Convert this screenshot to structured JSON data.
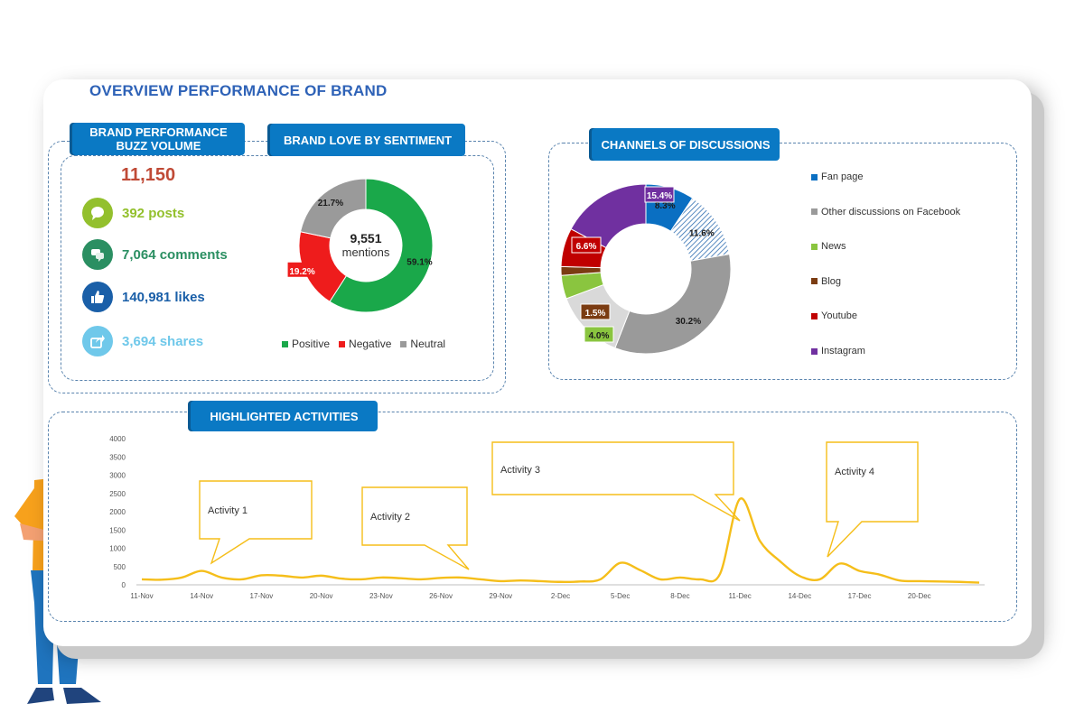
{
  "page": {
    "title": "OVERVIEW PERFORMANCE OF BRAND"
  },
  "colors": {
    "accent_blue": "#0a79c4",
    "positive": "#1aa84a",
    "negative": "#ee1c1c",
    "neutral": "#9a9a9a",
    "line": "#f5be1a"
  },
  "buzz": {
    "label": "BRAND PERFORMANCE BUZZ VOLUME",
    "total": "11,150",
    "metrics": [
      {
        "text": "392 posts",
        "icon": "speech-bubble-icon",
        "color": "#93c02d"
      },
      {
        "text": "7,064 comments",
        "icon": "comments-icon",
        "color": "#2b8f62"
      },
      {
        "text": "140,981 likes",
        "icon": "thumbs-up-icon",
        "color": "#1a5fa8"
      },
      {
        "text": "3,694 shares",
        "icon": "share-icon",
        "color": "#6fc8ea"
      }
    ]
  },
  "sentiment": {
    "label": "BRAND LOVE BY SENTIMENT",
    "center_value": "9,551",
    "center_label": "mentions"
  },
  "channels": {
    "label": "CHANNELS OF DISCUSSIONS"
  },
  "activities": {
    "label": "HIGHLIGHTED ACTIVITIES",
    "callouts": [
      "Activity 1",
      "Activity 2",
      "Activity 3",
      "Activity 4"
    ]
  },
  "chart_data": [
    {
      "type": "pie",
      "variant": "donut",
      "labels": [
        "Positive",
        "Negative",
        "Neutral"
      ],
      "values": [
        59.1,
        19.2,
        21.7
      ],
      "value_labels": [
        "59.1%",
        "19.2%",
        "21.7%"
      ],
      "colors": [
        "#1aa84a",
        "#ee1c1c",
        "#9a9a9a"
      ],
      "legend": "bottom"
    },
    {
      "type": "pie",
      "variant": "donut",
      "labels": [
        "Fan page",
        "Other discussions on Facebook",
        "Other discussions on Facebook",
        "Other discussions on Facebook",
        "News",
        "Blog",
        "Youtube",
        "Instagram"
      ],
      "legend_labels": [
        "Fan page",
        "Other discussions on Facebook",
        "News",
        "Blog",
        "Youtube",
        "Instagram"
      ],
      "legend_colors": [
        "#0a6fc2",
        "#9a9a9a",
        "#8ac53f",
        "#7b3c12",
        "#c00000",
        "#7030a0"
      ],
      "values": [
        8.3,
        11.6,
        30.2,
        12.0,
        4.0,
        1.5,
        6.6,
        15.4
      ],
      "value_labels": [
        "8.3%",
        "11.6%",
        "30.2%",
        "",
        "4.0%",
        "1.5%",
        "6.6%",
        "15.4%"
      ],
      "colors": [
        "#0a6fc2",
        "#2f6db0",
        "#9a9a9a",
        "#d9d9d9",
        "#8ac53f",
        "#7b3c12",
        "#c00000",
        "#7030a0"
      ],
      "legend": "right"
    },
    {
      "type": "line",
      "x_tick_labels": [
        "11-Nov",
        "14-Nov",
        "17-Nov",
        "20-Nov",
        "23-Nov",
        "26-Nov",
        "29-Nov",
        "2-Dec",
        "5-Dec",
        "8-Dec",
        "11-Dec",
        "14-Dec",
        "17-Dec",
        "20-Dec"
      ],
      "x": [
        "11-Nov",
        "12-Nov",
        "13-Nov",
        "14-Nov",
        "15-Nov",
        "16-Nov",
        "17-Nov",
        "18-Nov",
        "19-Nov",
        "20-Nov",
        "21-Nov",
        "22-Nov",
        "23-Nov",
        "24-Nov",
        "25-Nov",
        "26-Nov",
        "27-Nov",
        "28-Nov",
        "29-Nov",
        "30-Nov",
        "1-Dec",
        "2-Dec",
        "3-Dec",
        "4-Dec",
        "5-Dec",
        "6-Dec",
        "7-Dec",
        "8-Dec",
        "9-Dec",
        "10-Dec",
        "11-Dec",
        "12-Dec",
        "13-Dec",
        "14-Dec",
        "15-Dec",
        "16-Dec",
        "17-Dec",
        "18-Dec",
        "19-Dec",
        "20-Dec",
        "21-Dec",
        "22-Dec",
        "23-Dec"
      ],
      "series": [
        {
          "values": [
            150,
            140,
            200,
            380,
            200,
            150,
            260,
            250,
            200,
            250,
            170,
            150,
            200,
            180,
            150,
            190,
            200,
            150,
            100,
            120,
            100,
            80,
            90,
            150,
            600,
            400,
            150,
            200,
            150,
            300,
            2350,
            1200,
            650,
            240,
            150,
            580,
            380,
            280,
            120,
            100,
            90,
            80,
            60
          ]
        }
      ],
      "ylim": [
        0,
        4000
      ],
      "y_ticks": [
        0,
        500,
        1000,
        1500,
        2000,
        2500,
        3000,
        3500,
        4000
      ],
      "y_tick_labels": [
        "0",
        "500",
        "1000",
        "1500",
        "2000",
        "2500",
        "3000",
        "3500",
        "4000"
      ]
    }
  ]
}
